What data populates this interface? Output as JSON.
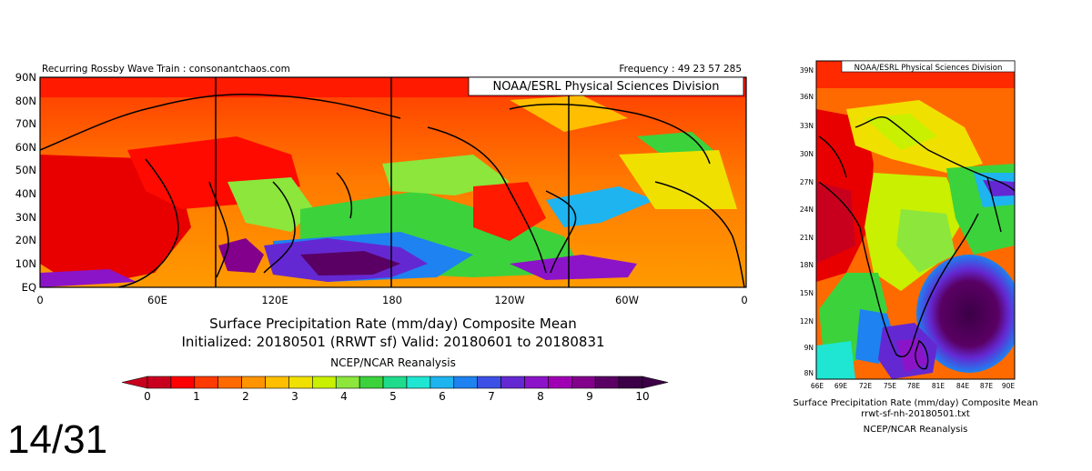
{
  "slide_counter": "14/31",
  "main_map": {
    "header_left": "Recurring Rossby Wave Train : consonantchaos.com",
    "header_right": "Frequency : 49 23 57 285",
    "credit": "NOAA/ESRL Physical Sciences Division",
    "lat_labels": [
      "90N",
      "80N",
      "70N",
      "60N",
      "50N",
      "40N",
      "30N",
      "20N",
      "10N",
      "EQ"
    ],
    "lon_labels": [
      "0",
      "60E",
      "120E",
      "180",
      "120W",
      "60W",
      "0"
    ],
    "title_line1": "Surface Precipitation Rate (mm/day) Composite Mean",
    "title_line2": "Initialized: 20180501 (RRWT sf) Valid: 20180601 to 20180831",
    "source": "NCEP/NCAR Reanalysis",
    "colorbar_ticks": [
      "0",
      "1",
      "2",
      "3",
      "4",
      "5",
      "6",
      "7",
      "8",
      "9",
      "10"
    ],
    "colorbar_colors": [
      "#c8001e",
      "#ff0000",
      "#ff3a00",
      "#ff6a00",
      "#ff9400",
      "#ffbe00",
      "#f0e000",
      "#c8f000",
      "#8ce63c",
      "#3cd23c",
      "#1edc8c",
      "#1ee6d2",
      "#1eb4f0",
      "#1e82f0",
      "#3c50e6",
      "#6428d2",
      "#8c14c8",
      "#a000b4",
      "#82008c",
      "#5a0064",
      "#3c0046"
    ]
  },
  "india_map": {
    "credit": "NOAA/ESRL Physical Sciences Division",
    "lat_labels": [
      "39N",
      "36N",
      "33N",
      "30N",
      "27N",
      "24N",
      "21N",
      "18N",
      "15N",
      "12N",
      "9N",
      "8N"
    ],
    "lon_labels": [
      "66E",
      "69E",
      "72E",
      "75E",
      "78E",
      "81E",
      "84E",
      "87E",
      "90E"
    ],
    "title": "Surface Precipitation Rate (mm/day) Composite Mean",
    "filename": "rrwt-sf-nh-20180501.txt",
    "source": "NCEP/NCAR Reanalysis"
  }
}
